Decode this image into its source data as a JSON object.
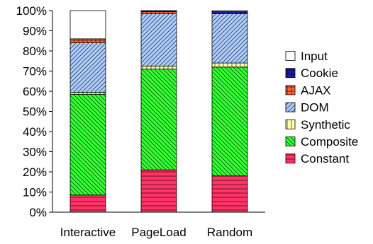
{
  "chart_data": {
    "type": "bar",
    "stacked": true,
    "percent": true,
    "title": "",
    "xlabel": "",
    "ylabel": "",
    "ylim": [
      0,
      100
    ],
    "yticks": [
      "0%",
      "10%",
      "20%",
      "30%",
      "40%",
      "50%",
      "60%",
      "70%",
      "80%",
      "90%",
      "100%"
    ],
    "categories": [
      "Interactive",
      "PageLoad",
      "Random"
    ],
    "series": [
      {
        "name": "Constant",
        "color": "#ff3366",
        "pattern": "horizontal-lines",
        "values": [
          8.5,
          21,
          18
        ]
      },
      {
        "name": "Composite",
        "color": "#33ff33",
        "pattern": "diagonal-down",
        "values": [
          50,
          50,
          54
        ]
      },
      {
        "name": "Synthetic",
        "color": "#ffffaa",
        "pattern": "vertical-lines",
        "values": [
          1,
          1.5,
          2
        ]
      },
      {
        "name": "DOM",
        "color": "#aaccff",
        "pattern": "diagonal-up",
        "values": [
          24.5,
          26,
          24.5
        ]
      },
      {
        "name": "AJAX",
        "color": "#ff6633",
        "pattern": "grid",
        "values": [
          2,
          1,
          0
        ]
      },
      {
        "name": "Cookie",
        "color": "#1a1aaa",
        "pattern": "grid",
        "values": [
          0,
          0.5,
          1
        ]
      },
      {
        "name": "Input",
        "color": "#ffffff",
        "pattern": "solid",
        "values": [
          14,
          0,
          0.5
        ]
      }
    ],
    "legend_order": [
      "Input",
      "Cookie",
      "AJAX",
      "DOM",
      "Synthetic",
      "Composite",
      "Constant"
    ],
    "legend_position": "right",
    "grid": false
  }
}
